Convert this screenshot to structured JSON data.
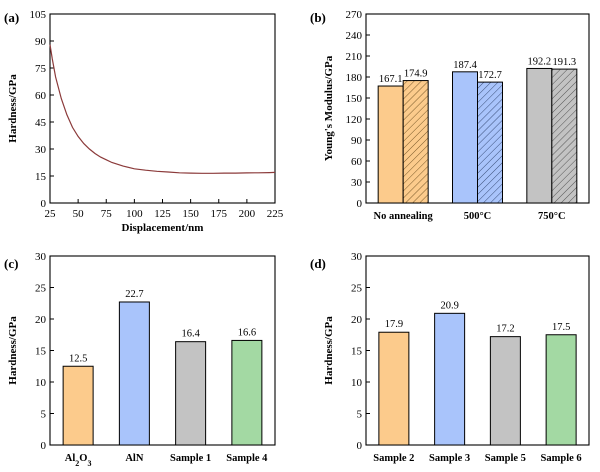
{
  "chart_data": [
    {
      "panel": "(a)",
      "type": "line",
      "xlabel": "Displacement/nm",
      "ylabel": "Hardness/GPa",
      "xlim": [
        25,
        225
      ],
      "ylim": [
        0,
        105
      ],
      "xticks": [
        "25",
        "50",
        "75",
        "100",
        "125",
        "150",
        "175",
        "200",
        "225"
      ],
      "yticks": [
        "0",
        "15",
        "30",
        "45",
        "60",
        "75",
        "90",
        "105"
      ],
      "color": "#8b3a3a",
      "x": [
        25,
        27,
        30,
        35,
        40,
        45,
        50,
        55,
        60,
        65,
        70,
        75,
        80,
        90,
        100,
        110,
        120,
        130,
        140,
        150,
        160,
        170,
        180,
        190,
        200,
        210,
        220,
        225
      ],
      "y": [
        88,
        80,
        70,
        58,
        49,
        42,
        37,
        33,
        30,
        27.5,
        25.5,
        24,
        22.5,
        20.5,
        19,
        18.2,
        17.6,
        17.2,
        16.8,
        16.6,
        16.5,
        16.5,
        16.6,
        16.6,
        16.7,
        16.8,
        16.9,
        17
      ]
    },
    {
      "panel": "(b)",
      "type": "bar",
      "xlabel": "",
      "ylabel": "Young's Modulus/GPa",
      "ylim": [
        0,
        270
      ],
      "yticks": [
        "0",
        "30",
        "60",
        "90",
        "120",
        "150",
        "180",
        "210",
        "240",
        "270"
      ],
      "categories": [
        "No annealing",
        "500°C",
        "750°C"
      ],
      "series": [
        {
          "values": [
            167.1,
            187.4,
            192.2
          ],
          "labels": [
            "167.1",
            "187.4",
            "192.2"
          ],
          "colors": [
            "#fccb8c",
            "#a9c4fb",
            "#c3c3c3"
          ],
          "hatch": false
        },
        {
          "values": [
            174.9,
            172.7,
            191.3
          ],
          "labels": [
            "174.9",
            "172.7",
            "191.3"
          ],
          "colors": [
            "#fccb8c",
            "#a9c4fb",
            "#c3c3c3"
          ],
          "hatch": true
        }
      ]
    },
    {
      "panel": "(c)",
      "type": "bar",
      "xlabel": "",
      "ylabel": "Hardness/GPa",
      "ylim": [
        0,
        30
      ],
      "yticks": [
        "0",
        "5",
        "10",
        "15",
        "20",
        "25",
        "30"
      ],
      "categories": [
        "Al2O3",
        "AlN",
        "Sample 1",
        "Sample 4"
      ],
      "values": [
        12.5,
        22.7,
        16.4,
        16.6
      ],
      "labels": [
        "12.5",
        "22.7",
        "16.4",
        "16.6"
      ],
      "colors": [
        "#fccb8c",
        "#a9c4fb",
        "#c3c3c3",
        "#a3d9a3"
      ]
    },
    {
      "panel": "(d)",
      "type": "bar",
      "xlabel": "",
      "ylabel": "Hardness/GPa",
      "ylim": [
        0,
        30
      ],
      "yticks": [
        "0",
        "5",
        "10",
        "15",
        "20",
        "25",
        "30"
      ],
      "categories": [
        "Sample 2",
        "Sample 3",
        "Sample 5",
        "Sample 6"
      ],
      "values": [
        17.9,
        20.9,
        17.2,
        17.5
      ],
      "labels": [
        "17.9",
        "20.9",
        "17.2",
        "17.5"
      ],
      "colors": [
        "#fccb8c",
        "#a9c4fb",
        "#c3c3c3",
        "#a3d9a3"
      ]
    }
  ]
}
